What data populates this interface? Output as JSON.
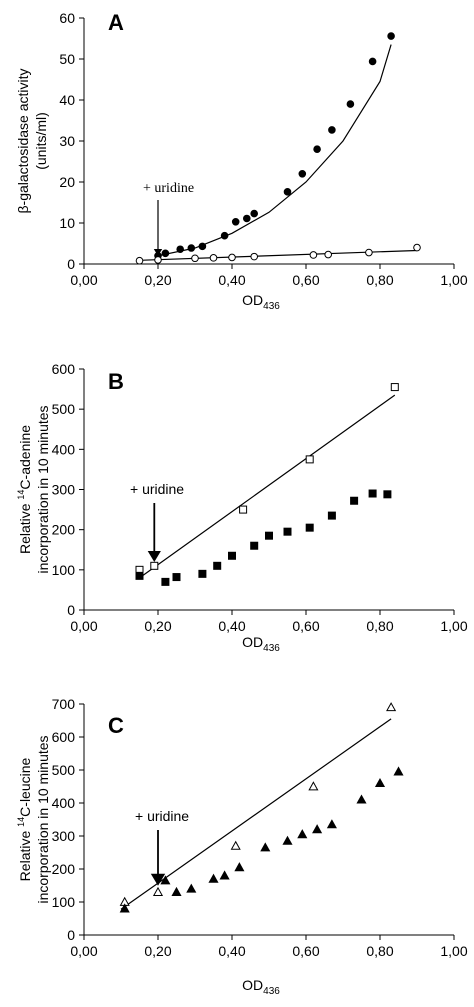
{
  "chart_data": [
    {
      "panel_letter": "A",
      "type": "scatter",
      "xlabel": "OD",
      "xlabel_sub": "436",
      "ylabel_line1": "β-galactosidase activity",
      "ylabel_line2": "(units/ml)",
      "xlim": [
        0,
        1
      ],
      "ylim": [
        0,
        60
      ],
      "xticks": [
        "0,00",
        "0,20",
        "0,40",
        "0,60",
        "0,80",
        "1,00"
      ],
      "yticks": [
        "0",
        "10",
        "20",
        "30",
        "40",
        "50",
        "60"
      ],
      "annotation": "+ uridine",
      "arrow_x": 0.2,
      "series": [
        {
          "marker": "filled-circle",
          "x": [
            0.2,
            0.22,
            0.26,
            0.29,
            0.32,
            0.38,
            0.41,
            0.44,
            0.46,
            0.55,
            0.59,
            0.63,
            0.67,
            0.72,
            0.78,
            0.83
          ],
          "y": [
            2.0,
            2.6,
            3.6,
            3.9,
            4.3,
            6.9,
            10.3,
            11.1,
            12.3,
            17.6,
            22.0,
            28.0,
            32.7,
            39.0,
            49.4,
            55.6
          ]
        },
        {
          "marker": "open-circle",
          "x": [
            0.15,
            0.2,
            0.3,
            0.35,
            0.4,
            0.46,
            0.62,
            0.66,
            0.77,
            0.9
          ],
          "y": [
            0.8,
            1.0,
            1.4,
            1.5,
            1.6,
            1.8,
            2.2,
            2.3,
            2.8,
            4.0
          ]
        }
      ],
      "fits": [
        {
          "kind": "curve",
          "x": [
            0.2,
            0.3,
            0.4,
            0.5,
            0.6,
            0.7,
            0.8,
            0.83
          ],
          "y": [
            2.0,
            3.9,
            7.5,
            12.6,
            20.0,
            30.0,
            44.5,
            53.5
          ]
        },
        {
          "kind": "line",
          "x": [
            0.15,
            0.9
          ],
          "y": [
            0.9,
            3.3
          ]
        }
      ]
    },
    {
      "panel_letter": "B",
      "type": "scatter",
      "xlabel": "OD",
      "xlabel_sub": "436",
      "ylabel_line1": "Relative 14C-adenine",
      "ylabel_line2": "incorporation in 10 minutes",
      "xlim": [
        0,
        1
      ],
      "ylim": [
        0,
        600
      ],
      "xticks": [
        "0,00",
        "0,20",
        "0,40",
        "0,60",
        "0,80",
        "1,00"
      ],
      "yticks": [
        "0",
        "100",
        "200",
        "300",
        "400",
        "500",
        "600"
      ],
      "annotation": "+ uridine",
      "arrow_x": 0.19,
      "series": [
        {
          "marker": "open-square",
          "x": [
            0.15,
            0.19,
            0.43,
            0.61,
            0.84
          ],
          "y": [
            100,
            110,
            250,
            375,
            555
          ]
        },
        {
          "marker": "filled-square",
          "x": [
            0.15,
            0.22,
            0.25,
            0.32,
            0.36,
            0.4,
            0.46,
            0.5,
            0.55,
            0.61,
            0.67,
            0.73,
            0.78,
            0.82
          ],
          "y": [
            85,
            70,
            82,
            90,
            110,
            135,
            160,
            185,
            195,
            205,
            235,
            272,
            290,
            288
          ]
        }
      ],
      "fits": [
        {
          "kind": "line",
          "x": [
            0.15,
            0.84
          ],
          "y": [
            80,
            535
          ]
        }
      ]
    },
    {
      "panel_letter": "C",
      "type": "scatter",
      "xlabel": "OD",
      "xlabel_sub": "436",
      "ylabel_line1": "Relative 14C-leucine",
      "ylabel_line2": "incorporation in 10 minutes",
      "xlim": [
        0,
        1
      ],
      "ylim": [
        0,
        700
      ],
      "xticks": [
        "0,00",
        "0,20",
        "0,40",
        "0,60",
        "0,80",
        "1,00"
      ],
      "yticks": [
        "0",
        "100",
        "200",
        "300",
        "400",
        "500",
        "600",
        "700"
      ],
      "annotation": "+ uridine",
      "arrow_x": 0.2,
      "series": [
        {
          "marker": "open-triangle",
          "x": [
            0.11,
            0.2,
            0.41,
            0.62,
            0.83
          ],
          "y": [
            100,
            130,
            270,
            450,
            690
          ]
        },
        {
          "marker": "filled-triangle",
          "x": [
            0.11,
            0.22,
            0.25,
            0.29,
            0.35,
            0.38,
            0.42,
            0.49,
            0.55,
            0.59,
            0.63,
            0.67,
            0.75,
            0.8,
            0.85
          ],
          "y": [
            80,
            165,
            130,
            140,
            170,
            180,
            205,
            265,
            285,
            305,
            320,
            335,
            410,
            460,
            495
          ]
        }
      ],
      "fits": [
        {
          "kind": "line",
          "x": [
            0.1,
            0.83
          ],
          "y": [
            78,
            655
          ]
        }
      ]
    }
  ]
}
